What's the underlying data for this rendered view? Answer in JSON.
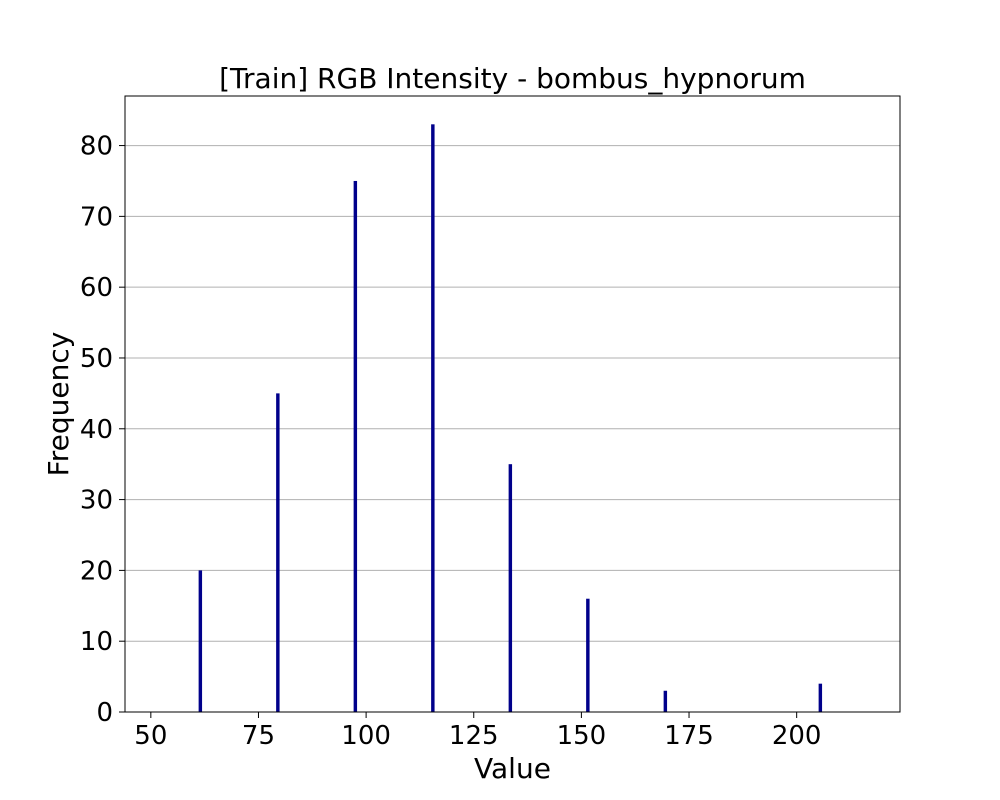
{
  "chart_data": {
    "type": "bar",
    "title": "[Train] RGB Intensity - bombus_hypnorum",
    "xlabel": "Value",
    "ylabel": "Frequency",
    "xlim": [
      44,
      224
    ],
    "ylim": [
      0,
      87
    ],
    "xticks": [
      50,
      75,
      100,
      125,
      150,
      175,
      200
    ],
    "yticks": [
      0,
      10,
      20,
      30,
      40,
      50,
      60,
      70,
      80
    ],
    "grid": "y",
    "bar_color": "#00008b",
    "bar_width": 0.8,
    "x": [
      61.5,
      79.5,
      97.5,
      115.5,
      133.5,
      151.5,
      169.5,
      205.5
    ],
    "values": [
      20,
      45,
      75,
      83,
      35,
      16,
      3,
      4
    ]
  }
}
